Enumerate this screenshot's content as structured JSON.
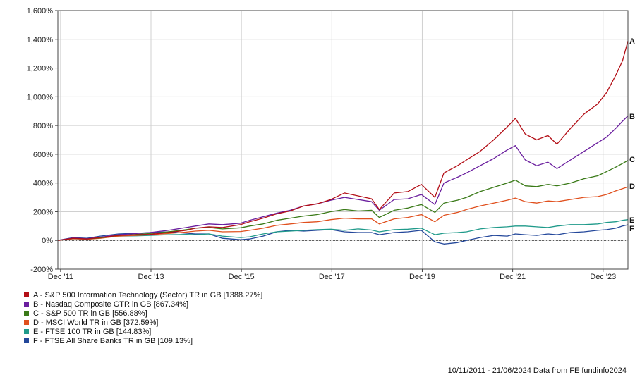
{
  "chart_data": {
    "type": "line",
    "title": "",
    "xlabel": "",
    "ylabel": "",
    "ylim": [
      -200,
      1600
    ],
    "y_ticks": [
      "-200%",
      "0%",
      "200%",
      "400%",
      "600%",
      "800%",
      "1,000%",
      "1,200%",
      "1,400%",
      "1,600%"
    ],
    "y_tick_values": [
      -200,
      0,
      200,
      400,
      600,
      800,
      1000,
      1200,
      1400,
      1600
    ],
    "x_ticks": [
      "Dec '11",
      "Dec '13",
      "Dec '15",
      "Dec '17",
      "Dec '19",
      "Dec '21",
      "Dec '23"
    ],
    "x_tick_values": [
      2011.92,
      2013.92,
      2015.92,
      2017.92,
      2019.92,
      2021.92,
      2023.92
    ],
    "xlim": [
      2011.86,
      2024.47
    ],
    "grid": true,
    "legend_position": "bottom-left",
    "series": [
      {
        "label": "A",
        "name": "A - S&P 500 Information Technology (Sector) TR in GB [1388.27%]",
        "color": "#b30f17",
        "x": [
          2011.86,
          2012.2,
          2012.5,
          2012.8,
          2013.2,
          2013.6,
          2013.9,
          2014.3,
          2014.7,
          2014.9,
          2015.2,
          2015.5,
          2015.9,
          2016.1,
          2016.4,
          2016.7,
          2017.0,
          2017.3,
          2017.6,
          2017.9,
          2018.2,
          2018.5,
          2018.8,
          2018.97,
          2019.3,
          2019.6,
          2019.9,
          2020.2,
          2020.4,
          2020.7,
          2020.9,
          2021.2,
          2021.5,
          2021.8,
          2021.98,
          2022.2,
          2022.45,
          2022.7,
          2022.9,
          2023.2,
          2023.5,
          2023.8,
          2024.0,
          2024.2,
          2024.35,
          2024.47
        ],
        "y": [
          0,
          15,
          10,
          20,
          35,
          40,
          42,
          55,
          70,
          85,
          95,
          90,
          110,
          130,
          155,
          185,
          205,
          240,
          255,
          285,
          330,
          310,
          290,
          215,
          330,
          340,
          390,
          300,
          470,
          520,
          560,
          620,
          700,
          790,
          850,
          740,
          700,
          730,
          670,
          780,
          880,
          950,
          1030,
          1150,
          1250,
          1388
        ]
      },
      {
        "label": "B",
        "name": "B - Nasdaq Composite GTR in GB [867.34%]",
        "color": "#6a1e9e",
        "x": [
          2011.86,
          2012.2,
          2012.5,
          2012.8,
          2013.2,
          2013.6,
          2013.9,
          2014.3,
          2014.7,
          2014.9,
          2015.2,
          2015.5,
          2015.9,
          2016.1,
          2016.4,
          2016.7,
          2017.0,
          2017.3,
          2017.6,
          2017.9,
          2018.2,
          2018.5,
          2018.8,
          2018.97,
          2019.3,
          2019.6,
          2019.9,
          2020.2,
          2020.4,
          2020.7,
          2020.9,
          2021.2,
          2021.5,
          2021.8,
          2021.98,
          2022.2,
          2022.45,
          2022.7,
          2022.9,
          2023.2,
          2023.5,
          2023.8,
          2024.0,
          2024.2,
          2024.35,
          2024.47
        ],
        "y": [
          0,
          18,
          12,
          22,
          40,
          48,
          55,
          70,
          90,
          100,
          115,
          110,
          120,
          140,
          165,
          190,
          210,
          240,
          255,
          280,
          300,
          285,
          270,
          210,
          285,
          290,
          320,
          250,
          400,
          440,
          470,
          520,
          570,
          630,
          660,
          560,
          520,
          545,
          500,
          560,
          620,
          680,
          720,
          780,
          830,
          867
        ]
      },
      {
        "label": "C",
        "name": "C - S&P 500 TR in GB [556.88%]",
        "color": "#3a7a18",
        "x": [
          2011.86,
          2012.2,
          2012.5,
          2012.8,
          2013.2,
          2013.6,
          2013.9,
          2014.3,
          2014.7,
          2014.9,
          2015.2,
          2015.5,
          2015.9,
          2016.1,
          2016.4,
          2016.7,
          2017.0,
          2017.3,
          2017.6,
          2017.9,
          2018.2,
          2018.5,
          2018.8,
          2018.97,
          2019.3,
          2019.6,
          2019.9,
          2020.2,
          2020.4,
          2020.7,
          2020.9,
          2021.2,
          2021.5,
          2021.8,
          2021.98,
          2022.2,
          2022.45,
          2022.7,
          2022.9,
          2023.2,
          2023.5,
          2023.8,
          2024.0,
          2024.2,
          2024.35,
          2024.47
        ],
        "y": [
          0,
          15,
          10,
          18,
          35,
          42,
          48,
          60,
          75,
          85,
          90,
          80,
          88,
          100,
          115,
          140,
          155,
          170,
          180,
          200,
          215,
          205,
          210,
          160,
          210,
          225,
          250,
          195,
          260,
          280,
          300,
          340,
          370,
          400,
          420,
          380,
          375,
          390,
          380,
          400,
          430,
          450,
          480,
          510,
          535,
          557
        ]
      },
      {
        "label": "D",
        "name": "D - MSCI World TR in GB [372.59%]",
        "color": "#e0501e",
        "x": [
          2011.86,
          2012.2,
          2012.5,
          2012.8,
          2013.2,
          2013.6,
          2013.9,
          2014.3,
          2014.7,
          2014.9,
          2015.2,
          2015.5,
          2015.9,
          2016.1,
          2016.4,
          2016.7,
          2017.0,
          2017.3,
          2017.6,
          2017.9,
          2018.2,
          2018.5,
          2018.8,
          2018.97,
          2019.3,
          2019.6,
          2019.9,
          2020.2,
          2020.4,
          2020.7,
          2020.9,
          2021.2,
          2021.5,
          2021.8,
          2021.98,
          2022.2,
          2022.45,
          2022.7,
          2022.9,
          2023.2,
          2023.5,
          2023.8,
          2024.0,
          2024.2,
          2024.35,
          2024.47
        ],
        "y": [
          0,
          12,
          8,
          15,
          30,
          35,
          40,
          48,
          58,
          65,
          70,
          60,
          62,
          70,
          85,
          105,
          115,
          125,
          130,
          145,
          155,
          150,
          150,
          115,
          150,
          160,
          180,
          130,
          175,
          195,
          215,
          240,
          260,
          280,
          295,
          270,
          260,
          275,
          270,
          285,
          300,
          305,
          320,
          345,
          360,
          373
        ]
      },
      {
        "label": "E",
        "name": "E - FTSE 100 TR in GB [144.83%]",
        "color": "#1f9a8a",
        "x": [
          2011.86,
          2012.2,
          2012.5,
          2012.8,
          2013.2,
          2013.6,
          2013.9,
          2014.3,
          2014.7,
          2014.9,
          2015.2,
          2015.5,
          2015.9,
          2016.1,
          2016.4,
          2016.7,
          2017.0,
          2017.3,
          2017.6,
          2017.9,
          2018.2,
          2018.5,
          2018.8,
          2018.97,
          2019.3,
          2019.6,
          2019.9,
          2020.2,
          2020.4,
          2020.7,
          2020.9,
          2021.2,
          2021.5,
          2021.8,
          2021.98,
          2022.2,
          2022.45,
          2022.7,
          2022.9,
          2023.2,
          2023.5,
          2023.8,
          2024.0,
          2024.2,
          2024.35,
          2024.47
        ],
        "y": [
          0,
          12,
          10,
          18,
          30,
          32,
          35,
          40,
          42,
          40,
          45,
          30,
          20,
          25,
          45,
          60,
          65,
          70,
          75,
          78,
          70,
          80,
          72,
          60,
          75,
          78,
          85,
          40,
          50,
          55,
          60,
          80,
          90,
          95,
          100,
          100,
          95,
          90,
          100,
          110,
          110,
          115,
          125,
          130,
          140,
          145
        ]
      },
      {
        "label": "F",
        "name": "F - FTSE All Share Banks TR in GB [109.13%]",
        "color": "#23479a",
        "x": [
          2011.86,
          2012.2,
          2012.5,
          2012.8,
          2013.2,
          2013.6,
          2013.9,
          2014.3,
          2014.7,
          2014.9,
          2015.2,
          2015.5,
          2015.9,
          2016.1,
          2016.4,
          2016.7,
          2017.0,
          2017.3,
          2017.6,
          2017.9,
          2018.2,
          2018.5,
          2018.8,
          2018.97,
          2019.3,
          2019.6,
          2019.9,
          2020.2,
          2020.4,
          2020.7,
          2020.9,
          2021.2,
          2021.5,
          2021.8,
          2021.98,
          2022.2,
          2022.45,
          2022.7,
          2022.9,
          2023.2,
          2023.5,
          2023.8,
          2024.0,
          2024.2,
          2024.35,
          2024.47
        ],
        "y": [
          0,
          20,
          15,
          30,
          45,
          50,
          55,
          60,
          50,
          45,
          45,
          15,
          5,
          10,
          30,
          60,
          70,
          65,
          70,
          75,
          60,
          55,
          55,
          40,
          55,
          60,
          70,
          -10,
          -25,
          -15,
          0,
          20,
          35,
          30,
          45,
          40,
          35,
          45,
          40,
          55,
          60,
          70,
          75,
          85,
          100,
          109
        ]
      }
    ]
  },
  "footer": {
    "text": "10/11/2011 - 21/06/2024 Data from FE fundinfo2024"
  }
}
